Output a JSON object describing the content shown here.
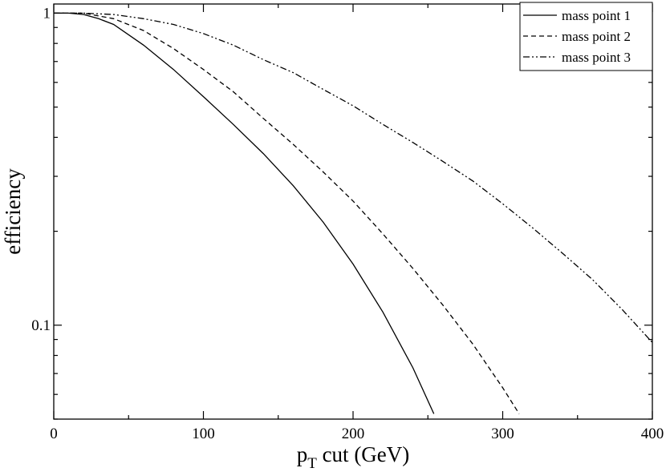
{
  "chart_data": {
    "type": "line",
    "xlabel": "p",
    "xlabel_sub": "T",
    "xlabel_rest": " cut (GeV)",
    "ylabel": "efficiency",
    "xlim": [
      0,
      400
    ],
    "ylim": [
      0.05,
      1.07
    ],
    "yscale": "log",
    "grid": false,
    "legend_position": "top-right",
    "x_ticks": [
      0,
      100,
      200,
      300,
      400
    ],
    "x_tick_labels": [
      "0",
      "100",
      "200",
      "300",
      "400"
    ],
    "y_tick_labels": [
      {
        "value": 1,
        "label": "1"
      },
      {
        "value": 0.1,
        "label": "0.1"
      }
    ],
    "series": [
      {
        "name": "mass point 1",
        "dash": "",
        "x": [
          0,
          10,
          20,
          30,
          40,
          60,
          80,
          100,
          120,
          140,
          160,
          180,
          200,
          220,
          240,
          254
        ],
        "y": [
          1.0,
          1.0,
          0.99,
          0.96,
          0.92,
          0.79,
          0.66,
          0.54,
          0.44,
          0.355,
          0.28,
          0.214,
          0.157,
          0.11,
          0.073,
          0.052
        ]
      },
      {
        "name": "mass point 2",
        "dash": "6,4",
        "x": [
          0,
          10,
          20,
          40,
          60,
          80,
          100,
          120,
          140,
          160,
          180,
          200,
          220,
          240,
          260,
          280,
          300,
          311
        ],
        "y": [
          1.0,
          1.0,
          1.0,
          0.96,
          0.88,
          0.77,
          0.66,
          0.56,
          0.46,
          0.38,
          0.31,
          0.25,
          0.196,
          0.152,
          0.116,
          0.087,
          0.063,
          0.052
        ]
      },
      {
        "name": "mass point 3",
        "dash": "8,3,2,3,2,3",
        "x": [
          0,
          20,
          40,
          60,
          80,
          100,
          120,
          140,
          160,
          180,
          200,
          220,
          240,
          260,
          280,
          300,
          320,
          340,
          360,
          380,
          400
        ],
        "y": [
          1.0,
          1.0,
          0.99,
          0.96,
          0.92,
          0.86,
          0.79,
          0.71,
          0.645,
          0.57,
          0.505,
          0.44,
          0.385,
          0.335,
          0.29,
          0.245,
          0.205,
          0.17,
          0.14,
          0.112,
          0.088
        ]
      }
    ]
  }
}
